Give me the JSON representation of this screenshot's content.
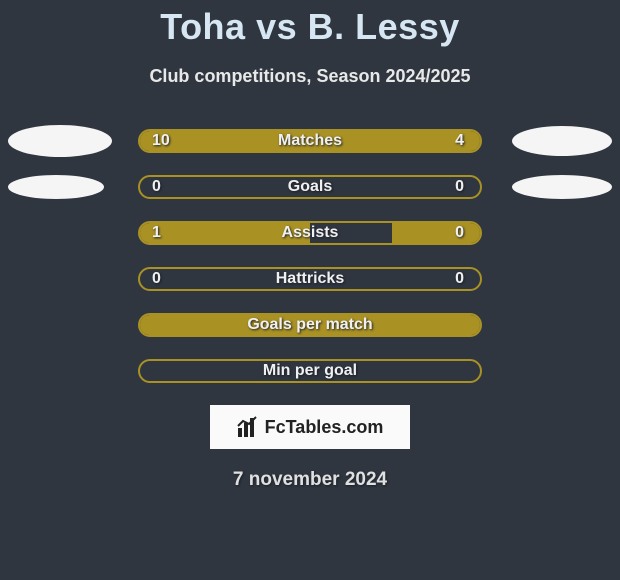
{
  "title": {
    "player1": "Toha",
    "vs": "vs",
    "player2": "B. Lessy",
    "player1_color": "#d6e6f2",
    "vs_color": "#d6e6f2",
    "player2_color": "#d6e6f2"
  },
  "subtitle": "Club competitions, Season 2024/2025",
  "colors": {
    "background": "#2f3640",
    "bar_border": "#a99124",
    "left_fill": "#a99124",
    "right_fill": "#a99124",
    "text": "#f0f0f0",
    "avatar": "#f5f5f5"
  },
  "avatar_sizes": [
    {
      "left_w": 104,
      "left_h": 32,
      "right_w": 100,
      "right_h": 30
    },
    {
      "left_w": 96,
      "left_h": 24,
      "right_w": 100,
      "right_h": 24
    }
  ],
  "rows": [
    {
      "label": "Matches",
      "left_value": "10",
      "right_value": "4",
      "left_pct": 68,
      "right_pct": 32,
      "show_avatars": true,
      "avatar_row": 0
    },
    {
      "label": "Goals",
      "left_value": "0",
      "right_value": "0",
      "left_pct": 0,
      "right_pct": 0,
      "show_avatars": true,
      "avatar_row": 1
    },
    {
      "label": "Assists",
      "left_value": "1",
      "right_value": "0",
      "left_pct": 50,
      "right_pct": 26,
      "show_avatars": false
    },
    {
      "label": "Hattricks",
      "left_value": "0",
      "right_value": "0",
      "left_pct": 0,
      "right_pct": 0,
      "show_avatars": false
    },
    {
      "label": "Goals per match",
      "left_value": "",
      "right_value": "",
      "left_pct": 100,
      "right_pct": 0,
      "show_avatars": false
    },
    {
      "label": "Min per goal",
      "left_value": "",
      "right_value": "",
      "left_pct": 0,
      "right_pct": 0,
      "show_avatars": false
    }
  ],
  "brand": "FcTables.com",
  "date": "7 november 2024"
}
